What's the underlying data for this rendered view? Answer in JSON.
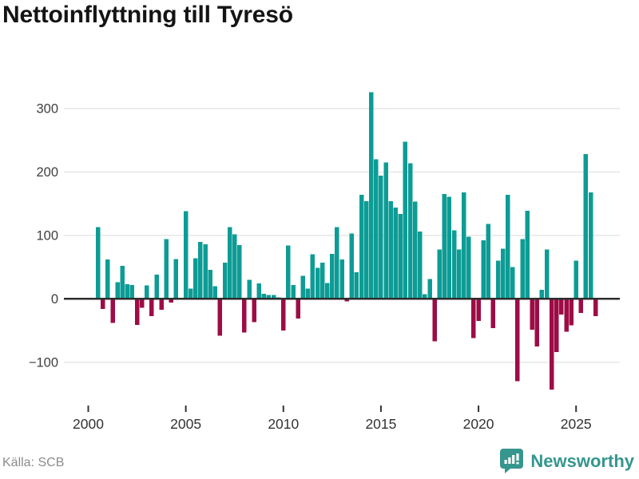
{
  "header": {
    "title": "Nettoinflyttning till Tyresö"
  },
  "footer": {
    "source": "Källa: SCB",
    "brand": "Newsworthy"
  },
  "colors": {
    "positive_bar": "#0d9c95",
    "negative_bar": "#9e0c46",
    "gridline": "#e2e2e2",
    "zero_axis": "#2d2d2d",
    "tick_text": "#3f3f3f",
    "title_text": "#141414",
    "source_text": "#8c8c8c",
    "brand_teal": "#35968e"
  },
  "chart_data": {
    "type": "bar",
    "title": "Nettoinflyttning till Tyresö",
    "xlabel": "",
    "ylabel": "",
    "grid": true,
    "legend": false,
    "ylim": [
      -160,
      345
    ],
    "y_ticks": [
      300,
      200,
      100,
      0,
      -100
    ],
    "y_tick_labels": [
      "300",
      "200",
      "100",
      "0",
      "−100"
    ],
    "x_ticks": [
      2000,
      2005,
      2010,
      2015,
      2020,
      2025
    ],
    "x": [
      "2000Q3",
      "2000Q4",
      "2001Q1",
      "2001Q2",
      "2001Q3",
      "2001Q4",
      "2002Q1",
      "2002Q2",
      "2002Q3",
      "2002Q4",
      "2003Q1",
      "2003Q2",
      "2003Q3",
      "2003Q4",
      "2004Q1",
      "2004Q2",
      "2004Q3",
      "2004Q4",
      "2005Q1",
      "2005Q2",
      "2005Q3",
      "2005Q4",
      "2006Q1",
      "2006Q2",
      "2006Q3",
      "2006Q4",
      "2007Q1",
      "2007Q2",
      "2007Q3",
      "2007Q4",
      "2008Q1",
      "2008Q2",
      "2008Q3",
      "2008Q4",
      "2009Q1",
      "2009Q2",
      "2009Q3",
      "2009Q4",
      "2010Q1",
      "2010Q2",
      "2010Q3",
      "2010Q4",
      "2011Q1",
      "2011Q2",
      "2011Q3",
      "2011Q4",
      "2012Q1",
      "2012Q2",
      "2012Q3",
      "2012Q4",
      "2013Q1",
      "2013Q2",
      "2013Q3",
      "2013Q4",
      "2014Q1",
      "2014Q2",
      "2014Q3",
      "2014Q4",
      "2015Q1",
      "2015Q2",
      "2015Q3",
      "2015Q4",
      "2016Q1",
      "2016Q2",
      "2016Q3",
      "2016Q4",
      "2017Q1",
      "2017Q2",
      "2017Q3",
      "2017Q4",
      "2018Q1",
      "2018Q2",
      "2018Q3",
      "2018Q4",
      "2019Q1",
      "2019Q2",
      "2019Q3",
      "2019Q4",
      "2020Q1",
      "2020Q2",
      "2020Q3",
      "2020Q4",
      "2021Q1",
      "2021Q2",
      "2021Q3",
      "2021Q4",
      "2022Q1",
      "2022Q2",
      "2022Q3",
      "2022Q4",
      "2023Q1",
      "2023Q2",
      "2023Q3",
      "2023Q4",
      "2024Q1",
      "2024Q2",
      "2024Q3",
      "2024Q4",
      "2025Q1",
      "2025Q2",
      "2025Q3",
      "2025Q4",
      "2026Q1"
    ],
    "values": [
      113,
      -16,
      62,
      -38,
      26,
      52,
      23,
      22,
      -41,
      -14,
      21,
      -27,
      38,
      -17,
      94,
      -6,
      63,
      0,
      138,
      16,
      64,
      90,
      86,
      46,
      20,
      -58,
      57,
      113,
      102,
      85,
      -53,
      30,
      -37,
      24,
      8,
      6,
      6,
      2,
      -50,
      84,
      22,
      -31,
      36,
      16,
      70,
      49,
      57,
      25,
      71,
      113,
      62,
      -4,
      103,
      42,
      164,
      154,
      326,
      220,
      194,
      215,
      154,
      144,
      134,
      248,
      214,
      153,
      106,
      7,
      31,
      -67,
      78,
      165,
      161,
      108,
      78,
      168,
      98,
      -62,
      -35,
      92,
      118,
      -46,
      60,
      79,
      164,
      50,
      -130,
      94,
      139,
      -49,
      -75,
      14,
      78,
      -143,
      -84,
      -25,
      -52,
      -42,
      60,
      -22,
      228,
      168,
      -27
    ]
  }
}
